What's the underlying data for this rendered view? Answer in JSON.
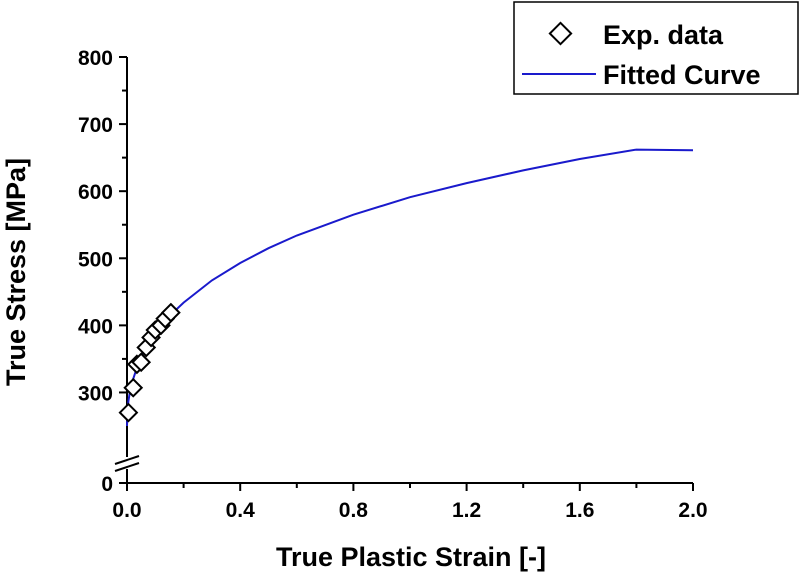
{
  "chart_data": {
    "type": "line",
    "title": "",
    "xlabel": "True Plastic Strain [-]",
    "ylabel": "True Stress [MPa]",
    "xlim": [
      0,
      2.0
    ],
    "ylim": [
      250,
      800
    ],
    "y_axis_break": true,
    "x_ticks": [
      0.0,
      0.4,
      0.8,
      1.2,
      1.6,
      2.0
    ],
    "x_tick_labels": [
      "0.0",
      "0.4",
      "0.8",
      "1.2",
      "1.6",
      "2.0"
    ],
    "y_ticks": [
      300,
      400,
      500,
      600,
      700,
      800
    ],
    "y_tick_labels": [
      "300",
      "400",
      "500",
      "600",
      "700",
      "800"
    ],
    "y_bottom_label": "0",
    "grid": false,
    "legend_position": "top-right",
    "series": [
      {
        "name": "Exp. data",
        "kind": "scatter",
        "marker": "diamond",
        "color": "#000000",
        "x": [
          0.005,
          0.022,
          0.035,
          0.05,
          0.068,
          0.085,
          0.1,
          0.12,
          0.135,
          0.155
        ],
        "y": [
          270,
          307,
          342,
          345,
          367,
          382,
          393,
          400,
          410,
          419
        ]
      },
      {
        "name": "Fitted Curve",
        "kind": "line",
        "color": "#1a1acc",
        "x": [
          0.0,
          0.001,
          0.005,
          0.01,
          0.02,
          0.04,
          0.06,
          0.08,
          0.1,
          0.15,
          0.2,
          0.3,
          0.4,
          0.5,
          0.6,
          0.8,
          1.0,
          1.2,
          1.4,
          1.6,
          1.8,
          2.0
        ],
        "y": [
          250,
          267,
          287,
          300,
          318,
          343,
          361,
          376,
          388,
          414,
          434,
          467,
          493,
          515,
          534,
          565,
          591,
          612,
          631,
          648,
          662,
          661
        ]
      }
    ]
  }
}
